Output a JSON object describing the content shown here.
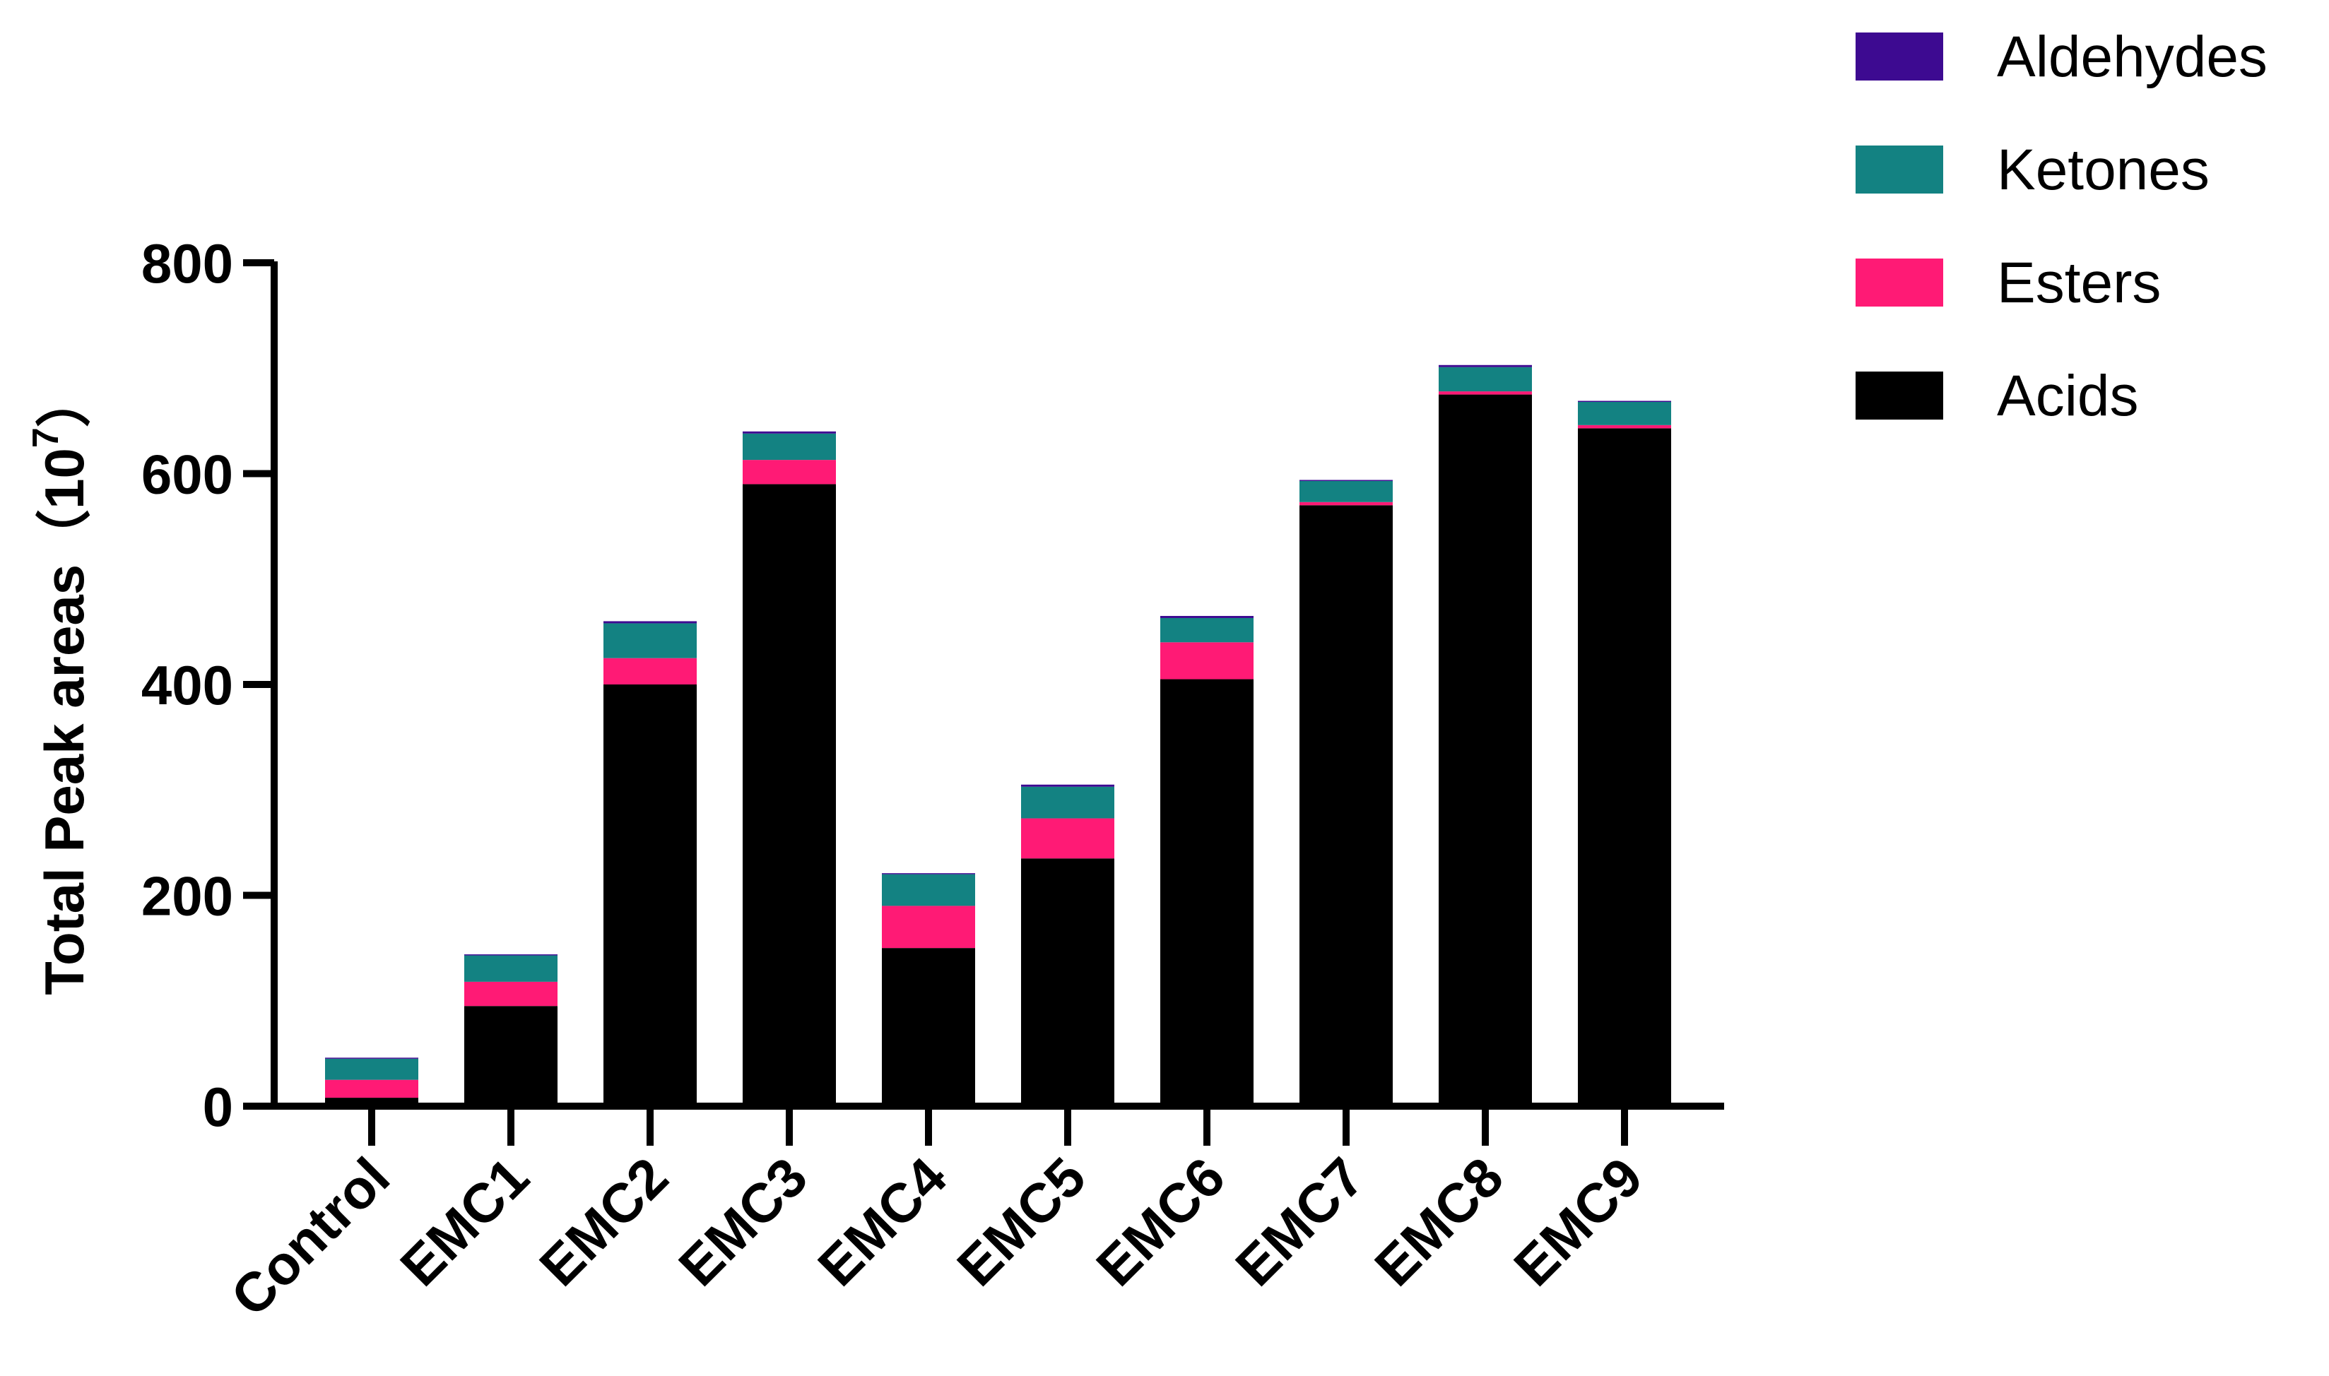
{
  "chart_data": {
    "type": "bar",
    "stacked": true,
    "categories": [
      "Control",
      "EMC1",
      "EMC2",
      "EMC3",
      "EMC4",
      "EMC5",
      "EMC6",
      "EMC7",
      "EMC8",
      "EMC9"
    ],
    "series": [
      {
        "name": "Acids",
        "color": "#000000",
        "values": [
          8,
          95,
          400,
          590,
          150,
          235,
          405,
          570,
          675,
          643
        ]
      },
      {
        "name": "Esters",
        "color": "#ff1a75",
        "values": [
          17,
          23,
          25,
          23,
          40,
          38,
          35,
          3,
          3,
          3
        ]
      },
      {
        "name": "Ketones",
        "color": "#138282",
        "values": [
          20,
          25,
          33,
          25,
          30,
          30,
          23,
          20,
          23,
          22
        ]
      },
      {
        "name": "Aldehydes",
        "color": "#3d0a91",
        "values": [
          1,
          1,
          2,
          2,
          1,
          2,
          2,
          1,
          2,
          1
        ]
      }
    ],
    "legend_order": [
      "Aldehydes",
      "Ketones",
      "Esters",
      "Acids"
    ],
    "ylabel_main": "Total Peak areas（10",
    "ylabel_sup": "7",
    "ylabel_close": "）",
    "ylim": [
      0,
      800
    ],
    "yticks": [
      0,
      200,
      400,
      600,
      800
    ],
    "grid": false,
    "legend_position": "top-right"
  }
}
